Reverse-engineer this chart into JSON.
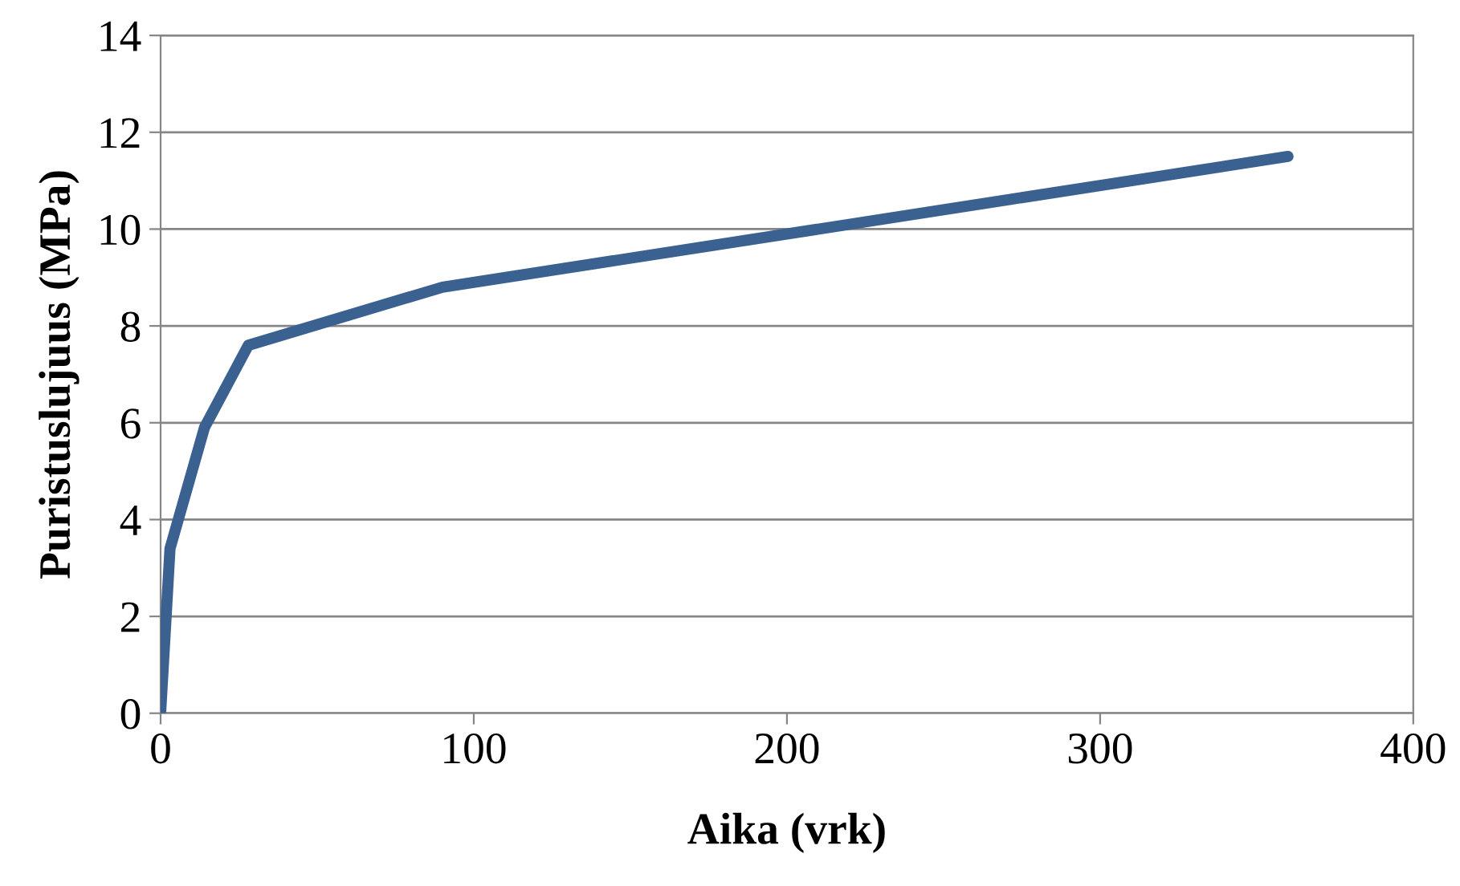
{
  "chart_data": {
    "type": "line",
    "xlabel": "Aika (vrk)",
    "ylabel": "Puristuslujuus (MPa)",
    "x": [
      0,
      3,
      14,
      28,
      90,
      360
    ],
    "series": [
      {
        "color": "#3b6191",
        "values": [
          0,
          3.4,
          5.9,
          7.6,
          8.8,
          11.5
        ]
      }
    ],
    "xlim": [
      0,
      400
    ],
    "xticks": [
      0,
      100,
      200,
      300,
      400
    ],
    "ylim": [
      0,
      14
    ],
    "yticks": [
      0,
      2,
      4,
      6,
      8,
      10,
      12,
      14
    ],
    "grid": "y",
    "marker": "none",
    "line_style": "solid",
    "legend": false
  }
}
